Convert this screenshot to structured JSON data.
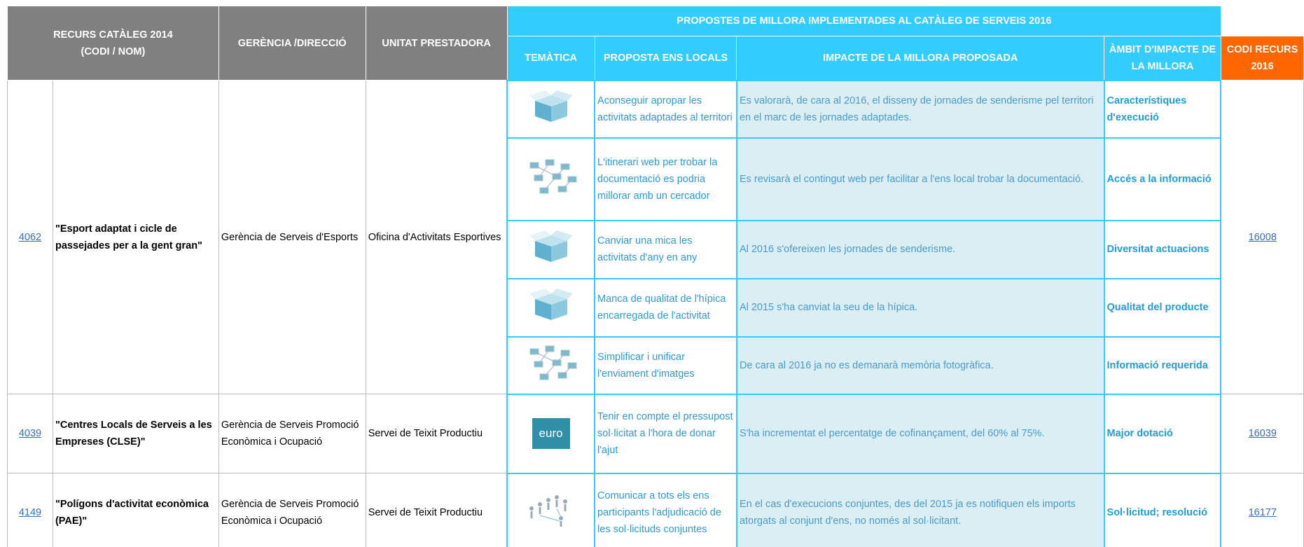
{
  "header": {
    "recurs": [
      "RECURS CATÀLEG 2014",
      "(CODI / NOM)"
    ],
    "gerencia": "GERÈNCIA /DIRECCIÓ",
    "unitat": "UNITAT PRESTADORA",
    "propostes": "PROPOSTES DE MILLORA IMPLEMENTADES AL CATÀLEG DE SERVEIS 2016",
    "tematica": "TEMÀTICA",
    "proposta": "PROPOSTA ENS LOCALS",
    "impacte": "IMPACTE DE LA MILLORA PROPOSADA",
    "ambit": "ÀMBIT D'IMPACTE DE LA MILLORA",
    "codi": "CODI RECURS 2016"
  },
  "resources": [
    {
      "codi": "4062",
      "nom": "\"Esport adaptat i cicle de passejades per a la gent gran\"",
      "gerencia": "Gerència de Serveis d'Esports",
      "unitat": "Oficina d'Activitats Esportives",
      "codi_2016": "16008",
      "proposals": [
        {
          "proposta": "Aconseguir apropar les activitats adaptades al territori",
          "impacte": "Es valorarà, de cara al 2016, el disseny de jornades de senderisme pel territori en el marc de les jornades adaptades.",
          "ambit": "Característiques d'execució"
        },
        {
          "proposta": "L'itinerari web per trobar la documentació es podria millorar amb un cercador",
          "impacte": "Es revisarà el contingut web per facilitar a l'ens local trobar la documentació.",
          "ambit": "Accés a la informació"
        },
        {
          "proposta": "Canviar una mica les activitats d'any en any",
          "impacte": "Al 2016 s'ofereixen les jornades de senderisme.",
          "ambit": "Diversitat actuacions"
        },
        {
          "proposta": "Manca de qualitat de l'hípica encarregada de l'activitat",
          "impacte": "Al 2015 s'ha canviat la seu de la hípica.",
          "ambit": "Qualitat del producte"
        },
        {
          "proposta": "Simplificar i unificar l'enviament d'imatges",
          "impacte": "De cara al 2016 ja no es demanarà memòria fotogràfica.",
          "ambit": "Informació requerida"
        }
      ]
    },
    {
      "codi": "4039",
      "nom": "\"Centres Locals de Serveis a les Empreses (CLSE)\"",
      "gerencia": "Gerència de Serveis Promoció Econòmica i Ocupació",
      "unitat": "Servei de Teixit Productiu",
      "codi_2016": "16039",
      "proposals": [
        {
          "icon_text": "euro",
          "proposta": "Tenir en compte el pressupost sol·licitat a l'hora de donar l'ajut",
          "impacte": "S'ha incrementat el percentatge de cofinançament, del 60% al 75%.",
          "ambit": "Major dotació"
        }
      ]
    },
    {
      "codi": "4149",
      "nom": "\"Polígons d'activitat econòmica (PAE)\"",
      "gerencia": "Gerència de Serveis Promoció Econòmica i Ocupació",
      "unitat": "Servei de Teixit Productiu",
      "codi_2016": "16177",
      "proposals": [
        {
          "proposta": "Comunicar a tots els ens participants l'adjudicació de les sol·licituds conjuntes",
          "impacte": "En el cas d'execucions conjuntes, des del 2015 ja es  notifiquen els imports atorgats al conjunt d'ens, no només al sol·licitant.",
          "ambit": "Sol·licitud; resolució"
        }
      ]
    }
  ]
}
